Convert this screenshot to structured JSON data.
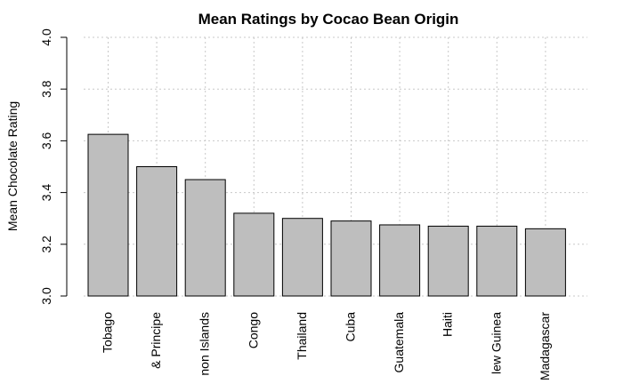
{
  "chart_data": {
    "type": "bar",
    "title": "Mean Ratings by Cocao Bean Origin",
    "xlabel": "",
    "ylabel": "Mean Chocolate Rating",
    "ylim": [
      3.0,
      4.0
    ],
    "yticks": [
      "3.0",
      "3.2",
      "3.4",
      "3.6",
      "3.8",
      "4.0"
    ],
    "categories": [
      "Tobago",
      "& Principe",
      "non Islands",
      "Congo",
      "Thailand",
      "Cuba",
      "Guatemala",
      "Haiti",
      "lew Guinea",
      "Madagascar"
    ],
    "values": [
      3.625,
      3.5,
      3.45,
      3.32,
      3.3,
      3.29,
      3.275,
      3.27,
      3.27,
      3.26
    ],
    "grid": true,
    "bar_color": "#bebebe"
  }
}
